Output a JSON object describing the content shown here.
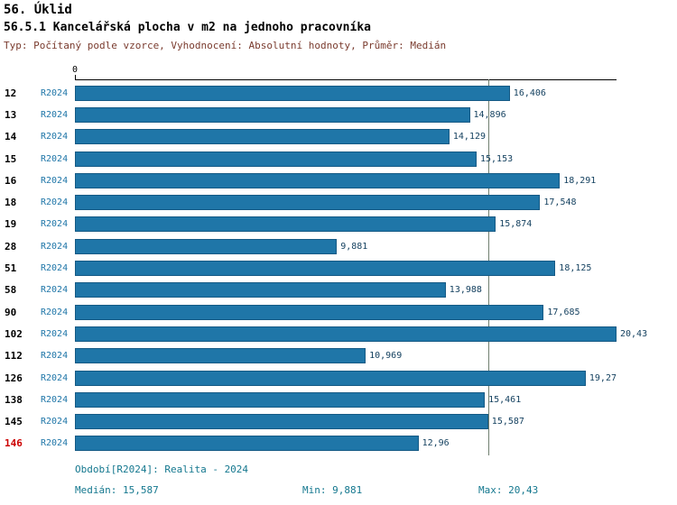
{
  "header": {
    "title": "56. Úklid",
    "subtitle": "56.5.1 Kancelářská plocha v m2 na jednoho pracovníka",
    "meta": "Typ: Počítaný podle vzorce, Vyhodnocení: Absolutní hodnoty, Průměr: Medián"
  },
  "chart_data": {
    "type": "bar",
    "orientation": "horizontal",
    "title": "56. Úklid",
    "subtitle": "56.5.1 Kancelářská plocha v m2 na jednoho pracovníka",
    "categories": [
      "12",
      "13",
      "14",
      "15",
      "16",
      "18",
      "19",
      "28",
      "51",
      "58",
      "90",
      "102",
      "112",
      "126",
      "138",
      "145",
      "146"
    ],
    "series": [
      {
        "name": "R2024",
        "values": [
          16.406,
          14.896,
          14.129,
          15.153,
          18.291,
          17.548,
          15.874,
          9.881,
          18.125,
          13.988,
          17.685,
          20.43,
          10.969,
          19.27,
          15.461,
          15.587,
          12.96
        ],
        "labels": [
          "16,406",
          "14,896",
          "14,129",
          "15,153",
          "18,291",
          "17,548",
          "15,874",
          "9,881",
          "18,125",
          "13,988",
          "17,685",
          "20,43",
          "10,969",
          "19,27",
          "15,461",
          "15,587",
          "12,96"
        ]
      }
    ],
    "axis": {
      "min": 0,
      "max": 20.43,
      "zero_label": "0"
    },
    "median_value": 15.587,
    "highlight_category": "146",
    "legend_position": "none",
    "grid": false,
    "colors": {
      "bar": "#1f76a8",
      "bar-border": "#155a85",
      "median-line": "#708070",
      "highlight": "#cc0000",
      "value-text": "#123f5e",
      "series-text": "#1f76a8",
      "footer-text": "#15788f",
      "meta-text": "#7a3b2e"
    }
  },
  "footer": {
    "period": "Období[R2024]: Realita - 2024",
    "median": "Medián: 15,587",
    "min": "Min: 9,881",
    "max": "Max: 20,43"
  }
}
